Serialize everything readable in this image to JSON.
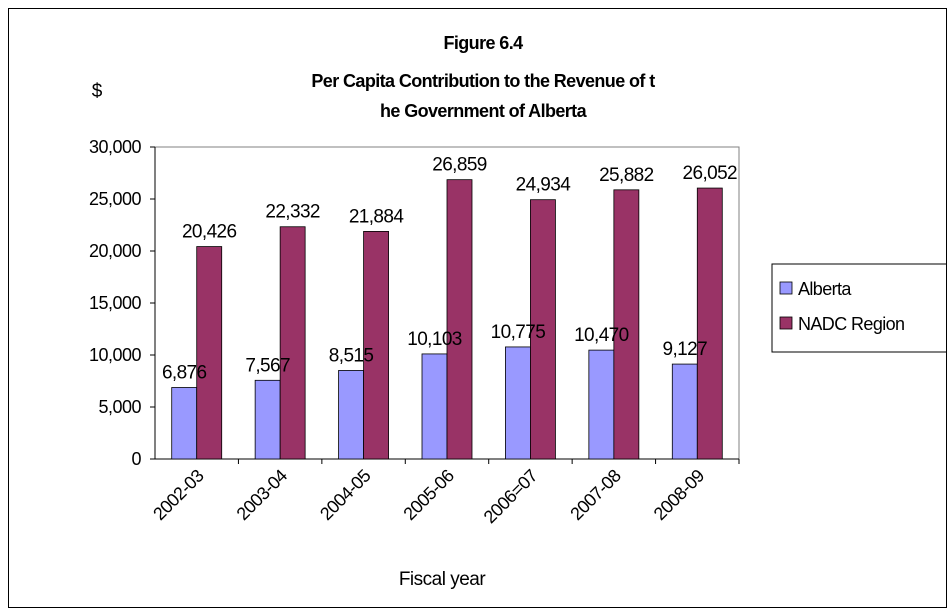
{
  "chart_data": {
    "type": "bar",
    "title_lines": [
      "Figure 6.4",
      "Per Capita Contribution to the Revenue of t",
      "he Government of Alberta"
    ],
    "ylabel": "$",
    "xlabel": "Fiscal year",
    "categories": [
      "2002-03",
      "2003-04",
      "2004-05",
      "2005-06",
      "2006=07",
      "2007-08",
      "2008-09"
    ],
    "series": [
      {
        "name": "Alberta",
        "color": "#9999ff",
        "values": [
          6876,
          7567,
          8515,
          10103,
          10775,
          10470,
          9127
        ],
        "labels": [
          "6,876",
          "7,567",
          "8,515",
          "10,103",
          "10,775",
          "10,470",
          "9,127"
        ]
      },
      {
        "name": "NADC Region",
        "color": "#993366",
        "values": [
          20426,
          22332,
          21884,
          26859,
          24934,
          25882,
          26052
        ],
        "labels": [
          "20,426",
          "22,332",
          "21,884",
          "26,859",
          "24,934",
          "25,882",
          "26,052"
        ]
      }
    ],
    "ylim": [
      0,
      30000
    ],
    "yticks": [
      0,
      5000,
      10000,
      15000,
      20000,
      25000,
      30000
    ],
    "ytick_labels": [
      "0",
      "5,000",
      "10,000",
      "15,000",
      "20,000",
      "25,000",
      "30,000"
    ],
    "grid": false,
    "legend": "right"
  }
}
